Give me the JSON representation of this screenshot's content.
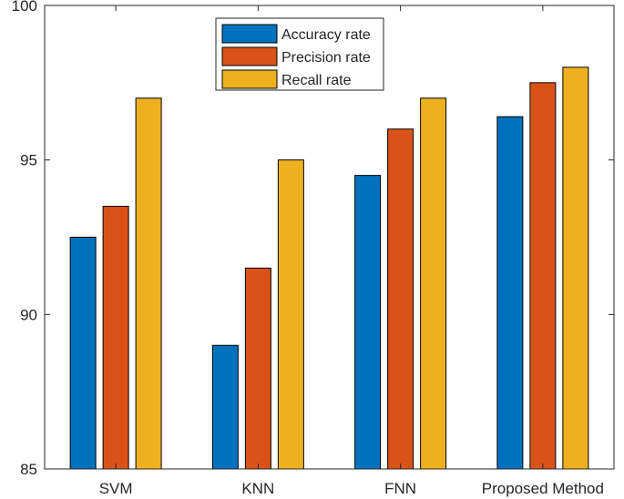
{
  "chart_data": {
    "type": "bar",
    "title": "",
    "xlabel": "",
    "ylabel": "",
    "categories": [
      "SVM",
      "KNN",
      "FNN",
      "Proposed Method"
    ],
    "series": [
      {
        "name": "Accuracy rate",
        "color": "#0072BD",
        "values": [
          92.5,
          89.0,
          94.5,
          96.4
        ]
      },
      {
        "name": "Precision rate",
        "color": "#D95319",
        "values": [
          93.5,
          91.5,
          96.0,
          97.5
        ]
      },
      {
        "name": "Recall rate",
        "color": "#EDB120",
        "values": [
          97.0,
          95.0,
          97.0,
          98.0
        ]
      }
    ],
    "ylim": [
      85,
      100
    ],
    "yticks": [
      85,
      90,
      95,
      100
    ],
    "ytick_labels": [
      "85",
      "90",
      "95",
      "100"
    ],
    "legend_position": "top-center",
    "grid": false
  }
}
